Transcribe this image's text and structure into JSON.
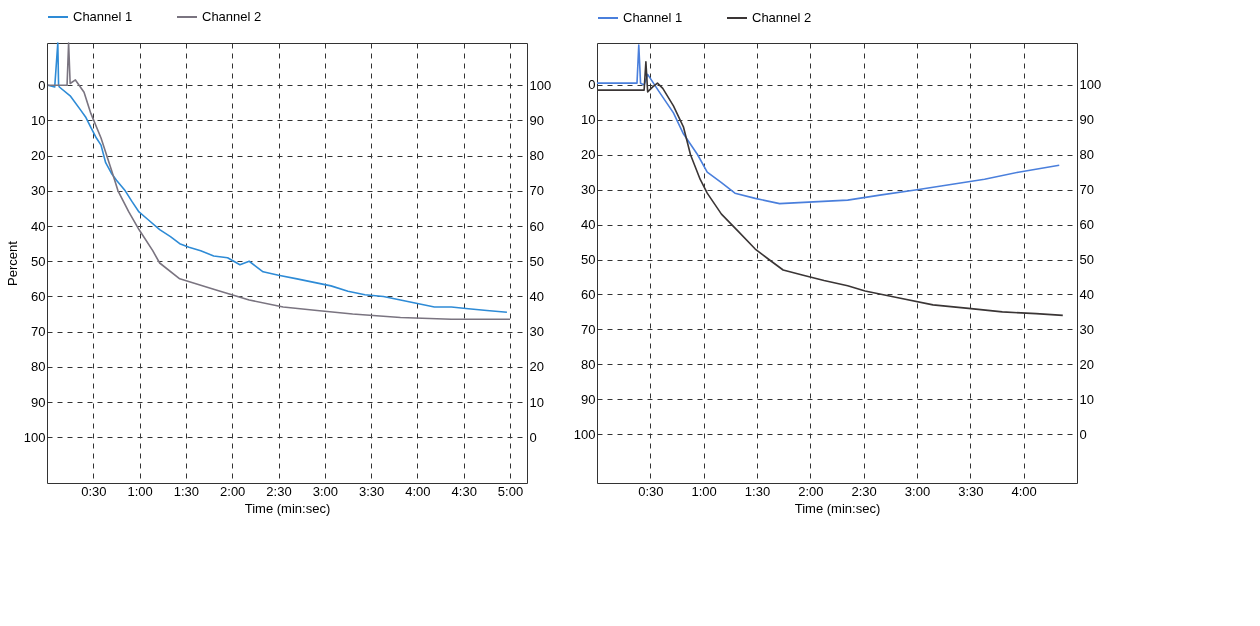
{
  "chart_data": [
    {
      "type": "line",
      "xlabel": "Time (min:sec)",
      "ylabel": "Percent",
      "legend": "top",
      "grid": true,
      "line_style": "solid",
      "marker": "none",
      "xlim": [
        0,
        311
      ],
      "xticks": [
        {
          "value": 30,
          "label": "0:30"
        },
        {
          "value": 60,
          "label": "1:00"
        },
        {
          "value": 90,
          "label": "1:30"
        },
        {
          "value": 120,
          "label": "2:00"
        },
        {
          "value": 150,
          "label": "2:30"
        },
        {
          "value": 180,
          "label": "3:00"
        },
        {
          "value": 210,
          "label": "3:30"
        },
        {
          "value": 240,
          "label": "4:00"
        },
        {
          "value": 270,
          "label": "4:30"
        },
        {
          "value": 300,
          "label": "5:00"
        }
      ],
      "ylim": [
        113,
        -12
      ],
      "yticks": [
        0,
        10,
        20,
        30,
        40,
        50,
        60,
        70,
        80,
        90,
        100
      ],
      "y2lim": [
        -13,
        112
      ],
      "y2ticks": [
        0,
        10,
        20,
        30,
        40,
        50,
        60,
        70,
        80,
        90,
        100
      ],
      "series": [
        {
          "name": "Channel 1",
          "color": "#2e8bd6",
          "x": [
            0.6,
            5,
            7,
            7.5,
            8,
            15,
            21.7,
            25,
            28.4,
            32,
            35,
            38,
            41.7,
            45,
            50.7,
            55,
            59.6,
            65,
            73,
            80,
            86,
            92,
            99.6,
            108,
            117,
            125,
            131,
            140,
            150,
            162,
            173,
            184,
            195,
            206,
            218,
            229,
            240,
            251,
            262,
            273,
            285,
            298
          ],
          "values": [
            0,
            0.5,
            -12,
            0,
            0.5,
            3,
            7,
            9,
            12,
            15,
            17,
            22,
            25,
            27,
            30,
            33,
            36,
            38,
            41,
            43,
            45,
            46,
            47,
            48.5,
            49,
            51,
            50,
            53,
            54,
            55,
            56,
            57,
            58.5,
            59.5,
            60,
            61,
            62,
            63,
            63,
            63.5,
            64,
            64.5
          ]
        },
        {
          "name": "Channel 2",
          "color": "#7a7480",
          "x": [
            0.6,
            13,
            14,
            15,
            18.4,
            24,
            28.4,
            35,
            41.7,
            46,
            53,
            59.6,
            68.5,
            73,
            86,
            108.5,
            131,
            153,
            175,
            198,
            229,
            262,
            300
          ],
          "values": [
            0,
            0,
            -12,
            -0.5,
            -1.5,
            2,
            8,
            15,
            24,
            30,
            36,
            41,
            47,
            50.5,
            55,
            58,
            61,
            63,
            64,
            65,
            66,
            66.5,
            66.5
          ]
        }
      ]
    },
    {
      "type": "line",
      "xlabel": "Time (min:sec)",
      "legend": "top",
      "grid": true,
      "line_style": "solid",
      "marker": "none",
      "xlim": [
        0,
        270
      ],
      "xticks": [
        {
          "value": 30,
          "label": "0:30"
        },
        {
          "value": 60,
          "label": "1:00"
        },
        {
          "value": 90,
          "label": "1:30"
        },
        {
          "value": 120,
          "label": "2:00"
        },
        {
          "value": 150,
          "label": "2:30"
        },
        {
          "value": 180,
          "label": "3:00"
        },
        {
          "value": 210,
          "label": "3:30"
        },
        {
          "value": 240,
          "label": "4:00"
        }
      ],
      "ylim": [
        114,
        -12
      ],
      "yticks": [
        0,
        10,
        20,
        30,
        40,
        50,
        60,
        70,
        80,
        90,
        100
      ],
      "y2lim": [
        -14,
        112
      ],
      "y2ticks": [
        0,
        10,
        20,
        30,
        40,
        50,
        60,
        70,
        80,
        90,
        100
      ],
      "series": [
        {
          "name": "Channel 1",
          "color": "#4a7fdc",
          "x": [
            0,
            10,
            22.5,
            23.5,
            24.5,
            26.5,
            28.5,
            35,
            43,
            48.6,
            56.6,
            62,
            70,
            77.6,
            89,
            102.7,
            121.7,
            141,
            160,
            180,
            199,
            218,
            237,
            260
          ],
          "values": [
            -0.5,
            -0.5,
            -0.5,
            -11.4,
            -0.5,
            0,
            -3,
            2,
            8,
            14,
            20,
            25,
            28,
            31,
            32.5,
            34,
            33.5,
            33,
            31.5,
            30,
            28.5,
            27,
            25,
            23
          ]
        },
        {
          "name": "Channel 2",
          "color": "#3a3535",
          "x": [
            0,
            10,
            26.5,
            27.5,
            28.5,
            31.5,
            34,
            37,
            43,
            48.6,
            52.6,
            58,
            62,
            70,
            79.6,
            89,
            96.7,
            104.7,
            116,
            127.7,
            141,
            150.8,
            170,
            189,
            209,
            228,
            247,
            262
          ],
          "values": [
            1.5,
            1.5,
            1.5,
            -6.6,
            2,
            0.5,
            -0.5,
            1,
            6,
            12,
            20,
            27,
            31,
            37,
            42,
            47,
            50,
            53,
            54.5,
            56,
            57.5,
            59,
            61,
            63,
            64,
            65,
            65.5,
            66
          ]
        }
      ]
    }
  ]
}
